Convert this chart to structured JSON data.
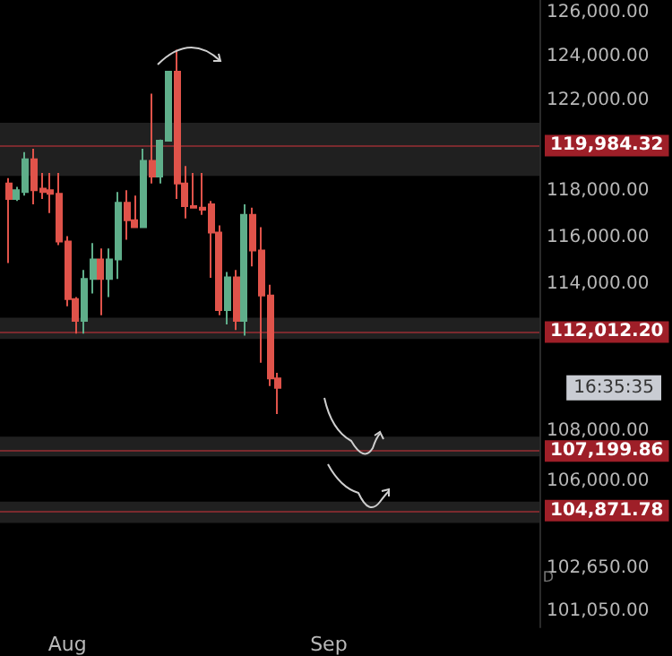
{
  "chart_data": {
    "type": "candlestick",
    "log": "y",
    "x": [
      "--07-25",
      "--07-26",
      "--07-27",
      "--07-28",
      "--07-29",
      "--07-30",
      "--07-31",
      "--08-01",
      "--08-02",
      "--08-03",
      "--08-04",
      "--08-05",
      "--08-06",
      "--08-07",
      "--08-08",
      "--08-09",
      "--08-10",
      "--08-11",
      "--08-12",
      "--08-13",
      "--08-14",
      "--08-15",
      "--08-16",
      "--08-17",
      "--08-18",
      "--08-19",
      "--08-20",
      "--08-21",
      "--08-22",
      "--08-23",
      "--08-24",
      "--08-25",
      "--08-26"
    ],
    "ohlc": [
      [
        118320,
        118550,
        114900,
        117640
      ],
      [
        117640,
        118170,
        117560,
        118020
      ],
      [
        117940,
        119690,
        117790,
        119380
      ],
      [
        119380,
        119840,
        117410,
        118020
      ],
      [
        118090,
        118780,
        117640,
        117940
      ],
      [
        118020,
        118780,
        117030,
        117870
      ],
      [
        117870,
        118780,
        115660,
        115810
      ],
      [
        115810,
        116040,
        113080,
        113380
      ],
      [
        113380,
        113460,
        111940,
        112470
      ],
      [
        112470,
        114600,
        111940,
        114220
      ],
      [
        114220,
        115740,
        113610,
        115050
      ],
      [
        115050,
        115510,
        112700,
        114220
      ],
      [
        114220,
        115510,
        113460,
        115050
      ],
      [
        115050,
        117940,
        114220,
        117480
      ],
      [
        117480,
        118020,
        115890,
        116720
      ],
      [
        116720,
        117790,
        116420,
        116420
      ],
      [
        116420,
        119840,
        116420,
        119310
      ],
      [
        119310,
        122300,
        118320,
        118620
      ],
      [
        118620,
        120250,
        118320,
        120200
      ],
      [
        120200,
        123300,
        120200,
        123300
      ],
      [
        123300,
        124300,
        117640,
        118320
      ],
      [
        118320,
        119080,
        116800,
        117330
      ],
      [
        117330,
        118780,
        117260,
        117260
      ],
      [
        117260,
        118780,
        116950,
        117180
      ],
      [
        117410,
        117560,
        114270,
        116190
      ],
      [
        116190,
        116500,
        112700,
        112920
      ],
      [
        112920,
        114520,
        112320,
        114290
      ],
      [
        114290,
        114600,
        112090,
        112470
      ],
      [
        112470,
        117410,
        111860,
        116950
      ],
      [
        116950,
        117260,
        114750,
        115430
      ],
      [
        115430,
        116420,
        110750,
        113530
      ],
      [
        113530,
        113980,
        109800,
        110110
      ],
      [
        110110,
        110340,
        108670,
        109730
      ]
    ],
    "colors": [
      "#e0534a",
      "#5fae8a",
      "#5fae8a",
      "#e0534a",
      "#e0534a",
      "#e0534a",
      "#e0534a",
      "#e0534a",
      "#e0534a",
      "#5fae8a",
      "#5fae8a",
      "#e0534a",
      "#5fae8a",
      "#5fae8a",
      "#e0534a",
      "#e0534a",
      "#5fae8a",
      "#e0534a",
      "#5fae8a",
      "#5fae8a",
      "#e0534a",
      "#e0534a",
      "#e0534a",
      "#e0534a",
      "#e0534a",
      "#e0534a",
      "#5fae8a",
      "#e0534a",
      "#5fae8a",
      "#e0534a",
      "#e0534a",
      "#e0534a",
      "#e0534a"
    ],
    "xlim": [
      "--07-24",
      "--09-26"
    ],
    "xticks": [
      {
        "value": "--08-01",
        "label": "Aug"
      },
      {
        "value": "--09-01",
        "label": "Sep"
      }
    ],
    "ylim": [
      100450,
      126600
    ],
    "yticks": [
      {
        "value": 126000,
        "label": "126,000.00"
      },
      {
        "value": 124000,
        "label": "124,000.00"
      },
      {
        "value": 122000,
        "label": "122,000.00"
      },
      {
        "value": 118000,
        "label": "118,000.00"
      },
      {
        "value": 116000,
        "label": "116,000.00"
      },
      {
        "value": 114000,
        "label": "114,000.00"
      },
      {
        "value": 108000,
        "label": "108,000.00"
      },
      {
        "value": 106000,
        "label": "106,000.00"
      },
      {
        "value": 102650,
        "label": "102,650.00"
      },
      {
        "value": 101050,
        "label": "101,050.00"
      }
    ],
    "ref_lines": [
      {
        "axis": "y",
        "value": 119984.32,
        "label": "119,984.32",
        "color": "#7a2a2e"
      },
      {
        "axis": "y",
        "value": 112012.2,
        "label": "112,012.20",
        "color": "#7a2a2e"
      },
      {
        "axis": "y",
        "value": 107199.86,
        "label": "107,199.86",
        "color": "#7a2a2e"
      },
      {
        "axis": "y",
        "value": 104871.78,
        "label": "104,871.78",
        "color": "#7a2a2e"
      }
    ],
    "bands": [
      {
        "axis": "y",
        "from": 118650,
        "to": 121000,
        "color": "#262626"
      },
      {
        "axis": "y",
        "from": 111720,
        "to": 112600,
        "color": "#262626"
      },
      {
        "axis": "y",
        "from": 106990,
        "to": 107770,
        "color": "#262626"
      },
      {
        "axis": "y",
        "from": 104390,
        "to": 105220,
        "color": "#262626"
      }
    ],
    "annotations": [
      "16:35:35",
      "D"
    ],
    "grid": false
  }
}
